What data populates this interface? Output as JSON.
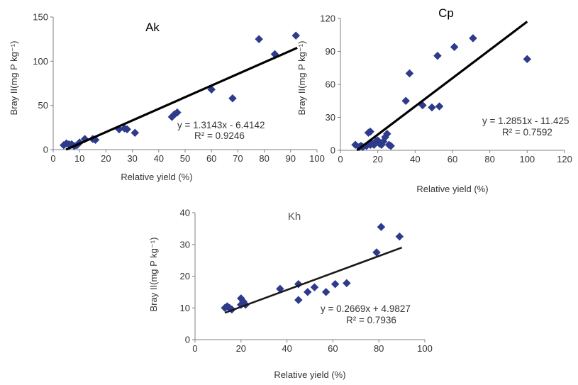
{
  "chart_data": [
    {
      "type": "scatter",
      "title": "Ak",
      "xlabel": "Relative yield (%)",
      "ylabel": "Bray II(mg P kg⁻¹)",
      "xlim": [
        0,
        100
      ],
      "ylim": [
        0,
        150
      ],
      "xticks": [
        0,
        10,
        20,
        30,
        40,
        50,
        60,
        70,
        80,
        90,
        100
      ],
      "yticks": [
        0,
        50,
        100,
        150
      ],
      "series": [
        {
          "marker": "diamond",
          "color": "#2e3a8c",
          "points": [
            [
              4,
              5
            ],
            [
              5,
              7
            ],
            [
              6,
              6
            ],
            [
              7,
              6
            ],
            [
              8,
              4
            ],
            [
              9,
              5
            ],
            [
              10,
              8
            ],
            [
              12,
              12
            ],
            [
              15,
              12
            ],
            [
              16,
              11
            ],
            [
              25,
              23
            ],
            [
              27,
              24
            ],
            [
              28,
              23
            ],
            [
              31,
              19
            ],
            [
              45,
              37
            ],
            [
              46,
              40
            ],
            [
              47,
              42
            ],
            [
              60,
              68
            ],
            [
              68,
              58
            ],
            [
              78,
              125
            ],
            [
              84,
              108
            ],
            [
              92,
              129
            ]
          ]
        }
      ],
      "trendline": {
        "slope": 1.3143,
        "intercept": -6.4142,
        "x_range": [
          4.88,
          92.5
        ]
      },
      "equation": "y = 1.3143x - 6.4142",
      "r2": "R² = 0.9246"
    },
    {
      "type": "scatter",
      "title": "Cp",
      "xlabel": "Relative yield (%)",
      "ylabel": "Bray II(mg P kg⁻¹)",
      "xlim": [
        0,
        120
      ],
      "ylim": [
        0,
        120
      ],
      "xticks": [
        0,
        20,
        40,
        60,
        80,
        100,
        120
      ],
      "yticks": [
        0,
        30,
        60,
        90,
        120
      ],
      "series": [
        {
          "marker": "diamond",
          "color": "#2e3a8c",
          "points": [
            [
              8,
              5
            ],
            [
              10,
              3
            ],
            [
              11,
              4
            ],
            [
              12,
              3
            ],
            [
              14,
              4
            ],
            [
              15,
              16
            ],
            [
              16,
              5
            ],
            [
              16,
              17
            ],
            [
              17,
              6
            ],
            [
              18,
              5
            ],
            [
              19,
              8
            ],
            [
              20,
              9
            ],
            [
              21,
              6
            ],
            [
              22,
              5
            ],
            [
              23,
              8
            ],
            [
              24,
              12
            ],
            [
              25,
              15
            ],
            [
              26,
              5
            ],
            [
              27,
              4
            ],
            [
              35,
              45
            ],
            [
              37,
              70
            ],
            [
              44,
              41
            ],
            [
              49,
              39
            ],
            [
              52,
              86
            ],
            [
              53,
              40
            ],
            [
              61,
              94
            ],
            [
              71,
              102
            ],
            [
              100,
              83
            ]
          ]
        }
      ],
      "trendline": {
        "slope": 1.2851,
        "intercept": -11.425,
        "x_range": [
          8.9,
          100
        ]
      },
      "equation": "y = 1.2851x - 11.425",
      "r2": "R² = 0.7592"
    },
    {
      "type": "scatter",
      "title": "Kh",
      "xlabel": "Relative yield (%)",
      "ylabel": "Bray II(mg P kg⁻¹)",
      "xlim": [
        0,
        100
      ],
      "ylim": [
        0,
        40
      ],
      "xticks": [
        0,
        20,
        40,
        60,
        80,
        100
      ],
      "yticks": [
        0,
        10,
        20,
        30,
        40
      ],
      "series": [
        {
          "marker": "diamond",
          "color": "#2e3a8c",
          "points": [
            [
              13,
              10
            ],
            [
              14,
              10.5
            ],
            [
              15,
              10
            ],
            [
              16,
              9.5
            ],
            [
              20,
              11
            ],
            [
              20,
              13
            ],
            [
              21,
              12
            ],
            [
              22,
              11
            ],
            [
              37,
              16
            ],
            [
              45,
              12.5
            ],
            [
              45,
              17.5
            ],
            [
              49,
              15
            ],
            [
              52,
              16.5
            ],
            [
              57,
              15
            ],
            [
              61,
              17.5
            ],
            [
              66,
              17.8
            ],
            [
              79,
              27.5
            ],
            [
              81,
              35.5
            ],
            [
              89,
              32.5
            ]
          ]
        }
      ],
      "trendline": {
        "slope": 0.2669,
        "intercept": 4.9827,
        "x_range": [
          13,
          90
        ]
      },
      "equation": "y = 0.2669x + 4.9827",
      "r2": "R² = 0.7936"
    }
  ]
}
